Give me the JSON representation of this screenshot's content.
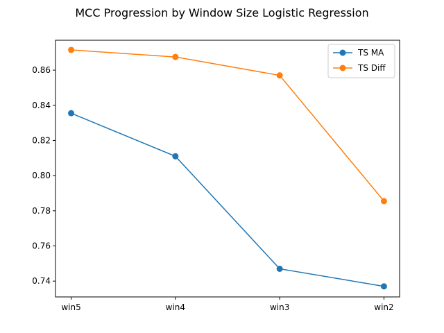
{
  "chart_data": {
    "type": "line",
    "title": "MCC Progression by Window Size Logistic Regression",
    "xlabel": "",
    "ylabel": "",
    "categories": [
      "win5",
      "win4",
      "win3",
      "win2"
    ],
    "series": [
      {
        "name": "TS MA",
        "values": [
          0.8355,
          0.811,
          0.747,
          0.737
        ],
        "color": "#1f77b4"
      },
      {
        "name": "TS Diff",
        "values": [
          0.8715,
          0.8675,
          0.857,
          0.7855
        ],
        "color": "#ff7f0e"
      }
    ],
    "ylim": [
      0.731,
      0.877
    ],
    "yticks": [
      "0.74",
      "0.76",
      "0.78",
      "0.80",
      "0.82",
      "0.84",
      "0.86"
    ],
    "grid": false,
    "legend": "top-right",
    "marker": "circle"
  }
}
